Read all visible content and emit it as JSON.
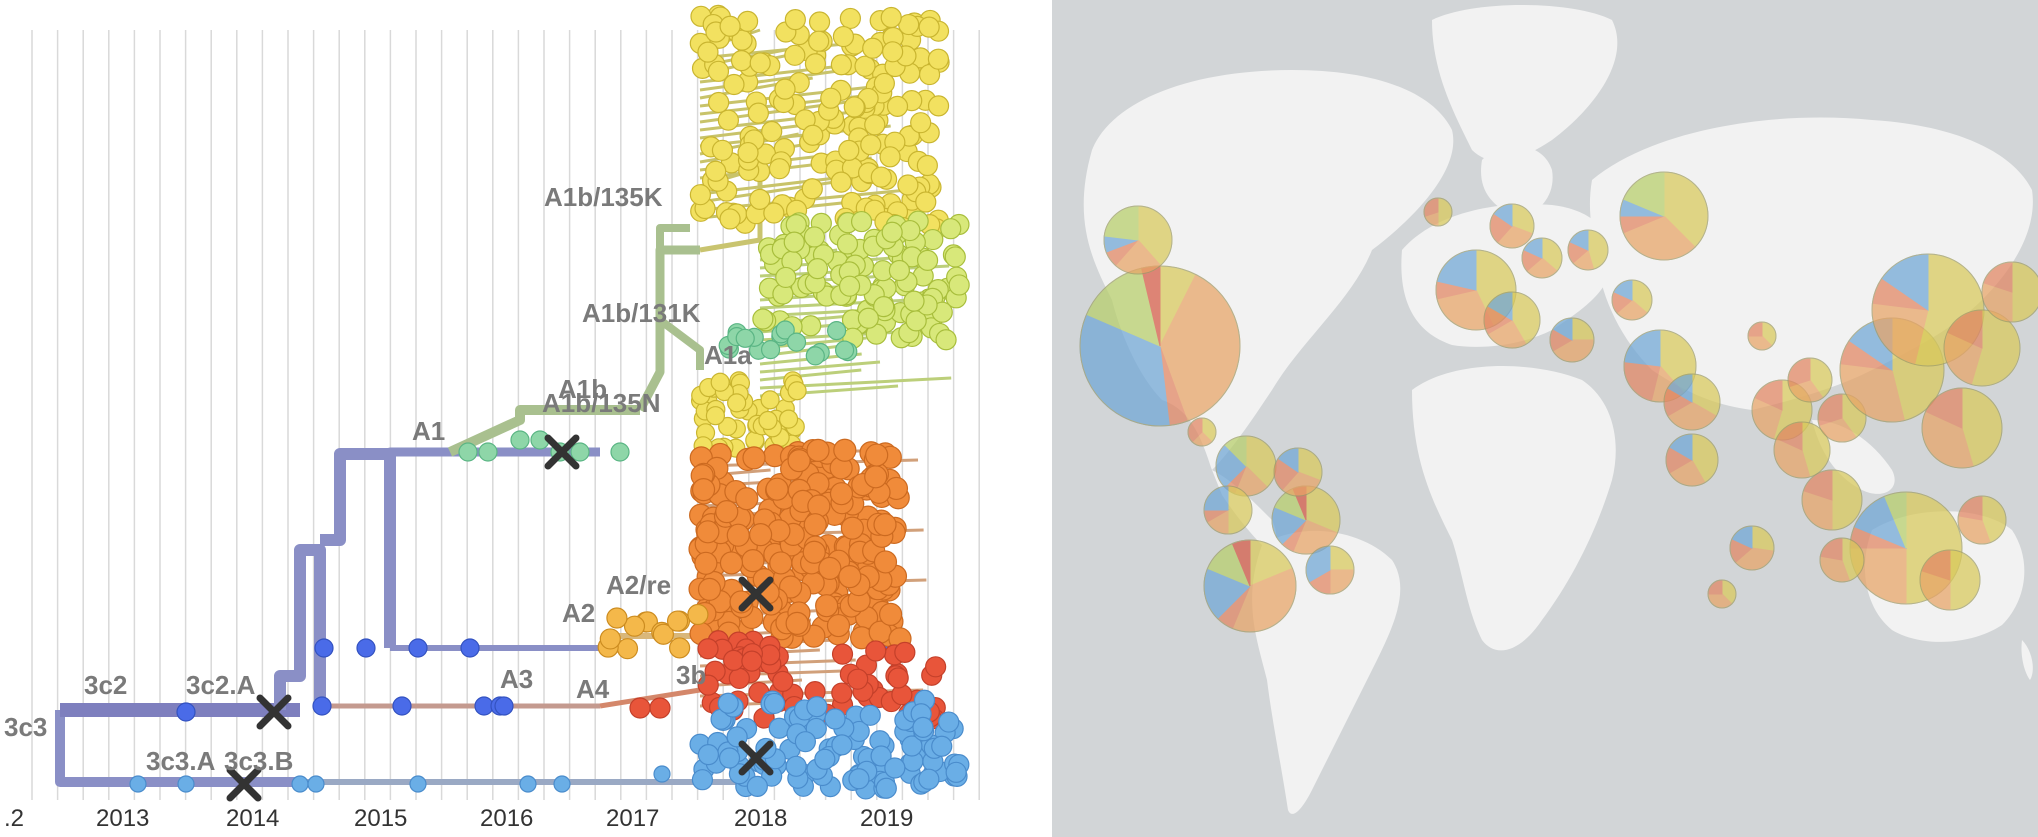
{
  "tree": {
    "axis_labels": [
      ".2",
      "2013",
      "2014",
      "2015",
      "2016",
      "2017",
      "2018",
      "2019"
    ],
    "clade_labels": [
      "3c3",
      "3c2",
      "3c2.A",
      "3c3.A",
      "3c3.B",
      "A1",
      "A1b",
      "A1b/135N",
      "A1a",
      "A1b/131K",
      "A1b/135K",
      "A2",
      "A2/re",
      "A3",
      "A4",
      "3b"
    ],
    "colors": {
      "trunk_purple": "#8a8fc6",
      "blue_tip": "#4a6be8",
      "light_blue": "#6aaee6",
      "teal_green": "#8ed6a8",
      "yellow_green": "#d8e87a",
      "yellow": "#f2e160",
      "orange": "#f08b3a",
      "red": "#e8553a",
      "olive_branch": "#a9c08f",
      "vaccine_marker": "#333333"
    },
    "vaccine_marker_icon": "x-mark-icon"
  },
  "map": {
    "palette": [
      "#d9c95a",
      "#e8a466",
      "#e28662",
      "#6fa6d6",
      "#b7cf6a",
      "#d65a46",
      "#92c7a8"
    ]
  }
}
